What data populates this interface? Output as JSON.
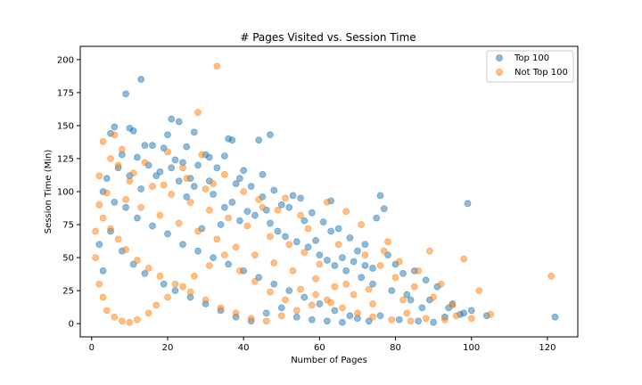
{
  "chart_data": {
    "type": "scatter",
    "title": "# Pages Visited vs. Session Time",
    "xlabel": "Number of Pages",
    "ylabel": "Session Time (Min)",
    "xlim": [
      -3,
      128
    ],
    "ylim": [
      -10,
      210
    ],
    "xticks": [
      0,
      20,
      40,
      60,
      80,
      100,
      120
    ],
    "yticks": [
      0,
      25,
      50,
      75,
      100,
      125,
      150,
      175,
      200
    ],
    "grid": false,
    "legend_position": "top-right",
    "series": [
      {
        "name": "Top 100",
        "color": "#1f77b4",
        "points": [
          [
            13,
            185
          ],
          [
            9,
            174
          ],
          [
            21,
            155
          ],
          [
            23,
            153
          ],
          [
            6,
            149
          ],
          [
            10,
            148
          ],
          [
            11,
            146
          ],
          [
            5,
            144
          ],
          [
            27,
            145
          ],
          [
            47,
            143
          ],
          [
            20,
            143
          ],
          [
            37,
            139
          ],
          [
            36,
            140
          ],
          [
            44,
            139
          ],
          [
            14,
            135
          ],
          [
            16,
            135
          ],
          [
            19,
            133
          ],
          [
            25,
            134
          ],
          [
            30,
            128
          ],
          [
            35,
            127
          ],
          [
            8,
            128
          ],
          [
            12,
            126
          ],
          [
            22,
            124
          ],
          [
            24,
            122
          ],
          [
            28,
            120
          ],
          [
            33,
            118
          ],
          [
            40,
            116
          ],
          [
            45,
            113
          ],
          [
            17,
            112
          ],
          [
            26,
            110
          ],
          [
            31,
            108
          ],
          [
            38,
            106
          ],
          [
            42,
            104
          ],
          [
            48,
            101
          ],
          [
            53,
            97
          ],
          [
            55,
            95
          ],
          [
            63,
            93
          ],
          [
            76,
            97
          ],
          [
            99,
            91
          ],
          [
            77,
            87
          ],
          [
            75,
            80
          ],
          [
            58,
            84
          ],
          [
            50,
            90
          ],
          [
            46,
            86
          ],
          [
            43,
            82
          ],
          [
            39,
            78
          ],
          [
            34,
            75
          ],
          [
            29,
            72
          ],
          [
            61,
            77
          ],
          [
            65,
            72
          ],
          [
            68,
            65
          ],
          [
            72,
            60
          ],
          [
            70,
            55
          ],
          [
            66,
            50
          ],
          [
            62,
            48
          ],
          [
            78,
            52
          ],
          [
            80,
            45
          ],
          [
            82,
            38
          ],
          [
            85,
            40
          ],
          [
            88,
            33
          ],
          [
            91,
            28
          ],
          [
            95,
            15
          ],
          [
            98,
            8
          ],
          [
            100,
            10
          ],
          [
            104,
            6
          ],
          [
            122,
            5
          ],
          [
            87,
            12
          ],
          [
            84,
            18
          ],
          [
            79,
            25
          ],
          [
            74,
            30
          ],
          [
            71,
            35
          ],
          [
            67,
            40
          ],
          [
            64,
            44
          ],
          [
            60,
            52
          ],
          [
            57,
            58
          ],
          [
            54,
            62
          ],
          [
            51,
            66
          ],
          [
            49,
            70
          ],
          [
            41,
            85
          ],
          [
            37,
            92
          ],
          [
            32,
            98
          ],
          [
            27,
            104
          ],
          [
            23,
            108
          ],
          [
            18,
            115
          ],
          [
            15,
            120
          ],
          [
            7,
            118
          ],
          [
            4,
            110
          ],
          [
            3,
            100
          ],
          [
            6,
            92
          ],
          [
            9,
            88
          ],
          [
            12,
            80
          ],
          [
            16,
            74
          ],
          [
            20,
            68
          ],
          [
            24,
            60
          ],
          [
            28,
            55
          ],
          [
            32,
            50
          ],
          [
            36,
            45
          ],
          [
            40,
            40
          ],
          [
            44,
            35
          ],
          [
            48,
            30
          ],
          [
            52,
            25
          ],
          [
            56,
            20
          ],
          [
            60,
            15
          ],
          [
            64,
            10
          ],
          [
            68,
            6
          ],
          [
            2,
            60
          ],
          [
            3,
            40
          ],
          [
            5,
            70
          ],
          [
            8,
            55
          ],
          [
            11,
            45
          ],
          [
            14,
            38
          ],
          [
            19,
            30
          ],
          [
            22,
            25
          ],
          [
            26,
            20
          ],
          [
            30,
            15
          ],
          [
            34,
            10
          ],
          [
            38,
            5
          ],
          [
            42,
            2
          ],
          [
            46,
            8
          ],
          [
            50,
            12
          ],
          [
            54,
            5
          ],
          [
            58,
            3
          ],
          [
            62,
            2
          ],
          [
            66,
            1
          ],
          [
            70,
            4
          ],
          [
            73,
            2
          ],
          [
            76,
            6
          ],
          [
            81,
            3
          ],
          [
            86,
            2
          ],
          [
            90,
            1
          ],
          [
            93,
            5
          ],
          [
            97,
            7
          ],
          [
            74,
            42
          ],
          [
            69,
            47
          ],
          [
            59,
            63
          ],
          [
            47,
            76
          ],
          [
            35,
            88
          ],
          [
            25,
            96
          ],
          [
            13,
            102
          ],
          [
            10,
            112
          ],
          [
            21,
            118
          ],
          [
            31,
            126
          ],
          [
            39,
            110
          ],
          [
            45,
            96
          ],
          [
            52,
            88
          ],
          [
            56,
            78
          ],
          [
            63,
            70
          ],
          [
            72,
            44
          ],
          [
            83,
            22
          ],
          [
            89,
            18
          ],
          [
            94,
            12
          ]
        ]
      },
      {
        "name": "Not Top 100",
        "color": "#ff7f0e",
        "points": [
          [
            33,
            195
          ],
          [
            28,
            160
          ],
          [
            6,
            143
          ],
          [
            3,
            138
          ],
          [
            8,
            132
          ],
          [
            20,
            130
          ],
          [
            29,
            128
          ],
          [
            5,
            125
          ],
          [
            14,
            122
          ],
          [
            24,
            118
          ],
          [
            35,
            113
          ],
          [
            2,
            112
          ],
          [
            10,
            108
          ],
          [
            19,
            105
          ],
          [
            30,
            102
          ],
          [
            40,
            100
          ],
          [
            51,
            95
          ],
          [
            62,
            92
          ],
          [
            45,
            88
          ],
          [
            55,
            82
          ],
          [
            67,
            85
          ],
          [
            71,
            75
          ],
          [
            78,
            62
          ],
          [
            77,
            55
          ],
          [
            81,
            47
          ],
          [
            89,
            55
          ],
          [
            98,
            49
          ],
          [
            86,
            40
          ],
          [
            92,
            30
          ],
          [
            102,
            25
          ],
          [
            121,
            36
          ],
          [
            105,
            7
          ],
          [
            96,
            6
          ],
          [
            100,
            4
          ],
          [
            83,
            8
          ],
          [
            74,
            15
          ],
          [
            69,
            22
          ],
          [
            64,
            28
          ],
          [
            59,
            34
          ],
          [
            53,
            40
          ],
          [
            48,
            46
          ],
          [
            43,
            52
          ],
          [
            38,
            58
          ],
          [
            33,
            64
          ],
          [
            28,
            70
          ],
          [
            23,
            76
          ],
          [
            18,
            82
          ],
          [
            13,
            88
          ],
          [
            9,
            94
          ],
          [
            4,
            99
          ],
          [
            2,
            90
          ],
          [
            3,
            80
          ],
          [
            5,
            72
          ],
          [
            7,
            64
          ],
          [
            9,
            56
          ],
          [
            12,
            48
          ],
          [
            15,
            42
          ],
          [
            18,
            36
          ],
          [
            22,
            30
          ],
          [
            26,
            24
          ],
          [
            30,
            18
          ],
          [
            34,
            12
          ],
          [
            38,
            8
          ],
          [
            42,
            4
          ],
          [
            46,
            2
          ],
          [
            50,
            6
          ],
          [
            54,
            10
          ],
          [
            58,
            14
          ],
          [
            62,
            18
          ],
          [
            66,
            12
          ],
          [
            70,
            8
          ],
          [
            74,
            5
          ],
          [
            79,
            3
          ],
          [
            84,
            2
          ],
          [
            88,
            4
          ],
          [
            93,
            3
          ],
          [
            60,
            45
          ],
          [
            56,
            54
          ],
          [
            52,
            60
          ],
          [
            47,
            66
          ],
          [
            41,
            74
          ],
          [
            36,
            80
          ],
          [
            31,
            86
          ],
          [
            26,
            92
          ],
          [
            21,
            98
          ],
          [
            16,
            104
          ],
          [
            11,
            114
          ],
          [
            7,
            120
          ],
          [
            25,
            110
          ],
          [
            32,
            106
          ],
          [
            44,
            94
          ],
          [
            49,
            86
          ],
          [
            57,
            72
          ],
          [
            65,
            60
          ],
          [
            72,
            52
          ],
          [
            76,
            44
          ],
          [
            80,
            35
          ],
          [
            85,
            28
          ],
          [
            90,
            20
          ],
          [
            95,
            14
          ],
          [
            1,
            70
          ],
          [
            1,
            50
          ],
          [
            2,
            30
          ],
          [
            3,
            20
          ],
          [
            4,
            10
          ],
          [
            6,
            5
          ],
          [
            8,
            2
          ],
          [
            10,
            1
          ],
          [
            12,
            3
          ],
          [
            15,
            8
          ],
          [
            17,
            14
          ],
          [
            20,
            20
          ],
          [
            24,
            28
          ],
          [
            27,
            36
          ],
          [
            31,
            44
          ],
          [
            35,
            52
          ],
          [
            39,
            40
          ],
          [
            43,
            32
          ],
          [
            47,
            24
          ],
          [
            51,
            18
          ],
          [
            55,
            26
          ],
          [
            59,
            22
          ],
          [
            63,
            16
          ],
          [
            67,
            30
          ],
          [
            73,
            26
          ],
          [
            82,
            18
          ]
        ]
      }
    ]
  }
}
